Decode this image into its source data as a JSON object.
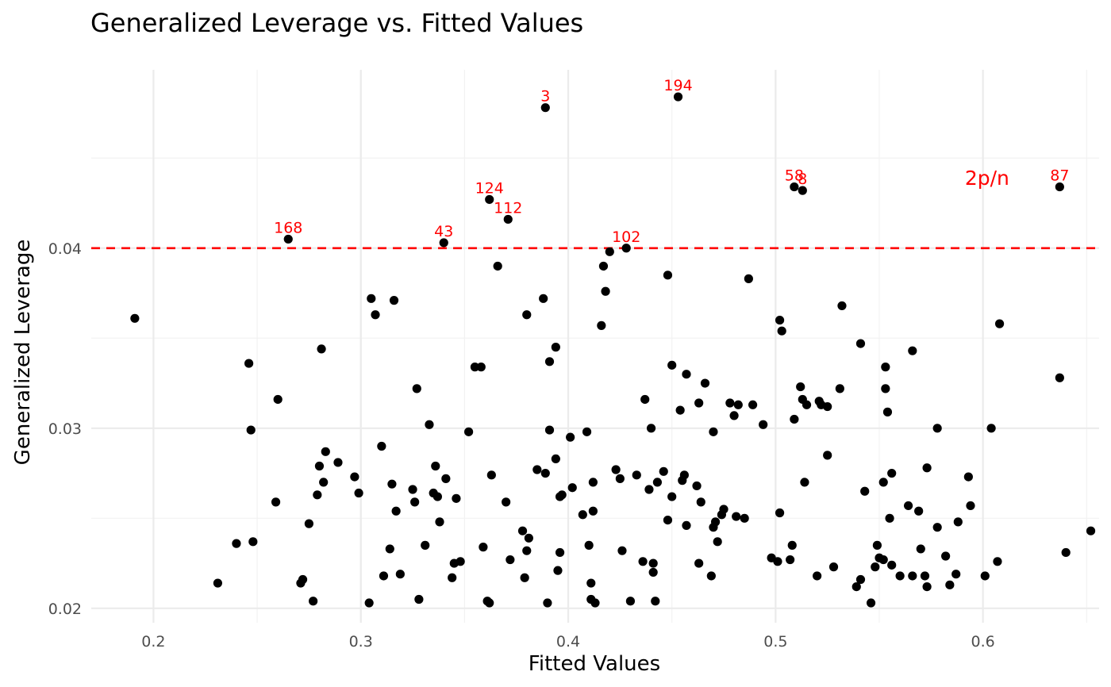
{
  "chart_data": {
    "type": "scatter",
    "title": "Generalized Leverage vs. Fitted Values",
    "xlabel": "Fitted Values",
    "ylabel": "Generalized Leverage",
    "xlim": [
      0.17,
      0.656
    ],
    "ylim": [
      0.0192,
      0.0499
    ],
    "x_ticks": [
      0.2,
      0.3,
      0.4,
      0.5,
      0.6
    ],
    "x_tick_labels": [
      "0.2",
      "0.3",
      "0.4",
      "0.5",
      "0.6"
    ],
    "y_ticks": [
      0.02,
      0.03,
      0.04
    ],
    "y_tick_labels": [
      "0.02",
      "0.03",
      "0.04"
    ],
    "grid": true,
    "point_color": "#000000",
    "label_color": "#ff0000",
    "reference_line": {
      "y": 0.04,
      "label": "2p/n",
      "label_x": 0.602,
      "label_y": 0.0439,
      "color": "#ff0000",
      "style": "dashed"
    },
    "labeled_points": [
      {
        "label": "3",
        "x": 0.389,
        "y": 0.0478
      },
      {
        "label": "194",
        "x": 0.453,
        "y": 0.0484
      },
      {
        "label": "124",
        "x": 0.362,
        "y": 0.0427
      },
      {
        "label": "112",
        "x": 0.371,
        "y": 0.0416
      },
      {
        "label": "58",
        "x": 0.509,
        "y": 0.0434
      },
      {
        "label": "8",
        "x": 0.513,
        "y": 0.0432
      },
      {
        "label": "87",
        "x": 0.637,
        "y": 0.0434
      },
      {
        "label": "168",
        "x": 0.265,
        "y": 0.0405
      },
      {
        "label": "43",
        "x": 0.34,
        "y": 0.0403
      },
      {
        "label": "102",
        "x": 0.428,
        "y": 0.04
      }
    ],
    "points": [
      [
        0.191,
        0.0361
      ],
      [
        0.231,
        0.0214
      ],
      [
        0.24,
        0.0236
      ],
      [
        0.246,
        0.0336
      ],
      [
        0.247,
        0.0299
      ],
      [
        0.248,
        0.0237
      ],
      [
        0.259,
        0.0259
      ],
      [
        0.26,
        0.0316
      ],
      [
        0.271,
        0.0214
      ],
      [
        0.272,
        0.0216
      ],
      [
        0.275,
        0.0247
      ],
      [
        0.277,
        0.0204
      ],
      [
        0.279,
        0.0263
      ],
      [
        0.28,
        0.0279
      ],
      [
        0.281,
        0.0344
      ],
      [
        0.282,
        0.027
      ],
      [
        0.283,
        0.0287
      ],
      [
        0.289,
        0.0281
      ],
      [
        0.297,
        0.0273
      ],
      [
        0.299,
        0.0264
      ],
      [
        0.304,
        0.0203
      ],
      [
        0.305,
        0.0372
      ],
      [
        0.307,
        0.0363
      ],
      [
        0.31,
        0.029
      ],
      [
        0.311,
        0.0218
      ],
      [
        0.314,
        0.0233
      ],
      [
        0.315,
        0.0269
      ],
      [
        0.316,
        0.0371
      ],
      [
        0.317,
        0.0254
      ],
      [
        0.319,
        0.0219
      ],
      [
        0.325,
        0.0266
      ],
      [
        0.326,
        0.0259
      ],
      [
        0.327,
        0.0322
      ],
      [
        0.328,
        0.0205
      ],
      [
        0.331,
        0.0235
      ],
      [
        0.333,
        0.0302
      ],
      [
        0.335,
        0.0264
      ],
      [
        0.336,
        0.0279
      ],
      [
        0.337,
        0.0262
      ],
      [
        0.338,
        0.0248
      ],
      [
        0.341,
        0.0272
      ],
      [
        0.344,
        0.0217
      ],
      [
        0.345,
        0.0225
      ],
      [
        0.346,
        0.0261
      ],
      [
        0.348,
        0.0226
      ],
      [
        0.352,
        0.0298
      ],
      [
        0.355,
        0.0334
      ],
      [
        0.358,
        0.0334
      ],
      [
        0.359,
        0.0234
      ],
      [
        0.361,
        0.0204
      ],
      [
        0.362,
        0.0203
      ],
      [
        0.363,
        0.0274
      ],
      [
        0.366,
        0.039
      ],
      [
        0.37,
        0.0259
      ],
      [
        0.372,
        0.0227
      ],
      [
        0.378,
        0.0243
      ],
      [
        0.379,
        0.0217
      ],
      [
        0.38,
        0.0363
      ],
      [
        0.38,
        0.0232
      ],
      [
        0.381,
        0.0239
      ],
      [
        0.385,
        0.0277
      ],
      [
        0.388,
        0.0372
      ],
      [
        0.389,
        0.0275
      ],
      [
        0.39,
        0.0203
      ],
      [
        0.391,
        0.0337
      ],
      [
        0.391,
        0.0299
      ],
      [
        0.394,
        0.0345
      ],
      [
        0.394,
        0.0283
      ],
      [
        0.395,
        0.0221
      ],
      [
        0.396,
        0.0262
      ],
      [
        0.396,
        0.0231
      ],
      [
        0.397,
        0.0263
      ],
      [
        0.401,
        0.0295
      ],
      [
        0.402,
        0.0267
      ],
      [
        0.407,
        0.0252
      ],
      [
        0.409,
        0.0298
      ],
      [
        0.41,
        0.0235
      ],
      [
        0.411,
        0.0214
      ],
      [
        0.411,
        0.0205
      ],
      [
        0.412,
        0.0254
      ],
      [
        0.412,
        0.027
      ],
      [
        0.413,
        0.0203
      ],
      [
        0.416,
        0.0357
      ],
      [
        0.417,
        0.039
      ],
      [
        0.418,
        0.0376
      ],
      [
        0.42,
        0.0398
      ],
      [
        0.423,
        0.0277
      ],
      [
        0.425,
        0.0272
      ],
      [
        0.426,
        0.0232
      ],
      [
        0.43,
        0.0204
      ],
      [
        0.433,
        0.0274
      ],
      [
        0.436,
        0.0226
      ],
      [
        0.437,
        0.0316
      ],
      [
        0.439,
        0.0266
      ],
      [
        0.44,
        0.03
      ],
      [
        0.441,
        0.0225
      ],
      [
        0.441,
        0.022
      ],
      [
        0.442,
        0.0204
      ],
      [
        0.443,
        0.027
      ],
      [
        0.446,
        0.0276
      ],
      [
        0.448,
        0.0385
      ],
      [
        0.448,
        0.0249
      ],
      [
        0.45,
        0.0262
      ],
      [
        0.45,
        0.0335
      ],
      [
        0.454,
        0.031
      ],
      [
        0.455,
        0.0271
      ],
      [
        0.456,
        0.0274
      ],
      [
        0.457,
        0.0246
      ],
      [
        0.457,
        0.033
      ],
      [
        0.462,
        0.0268
      ],
      [
        0.463,
        0.0314
      ],
      [
        0.463,
        0.0225
      ],
      [
        0.464,
        0.0259
      ],
      [
        0.466,
        0.0325
      ],
      [
        0.469,
        0.0218
      ],
      [
        0.47,
        0.0245
      ],
      [
        0.47,
        0.0298
      ],
      [
        0.471,
        0.0248
      ],
      [
        0.472,
        0.0237
      ],
      [
        0.474,
        0.0252
      ],
      [
        0.475,
        0.0255
      ],
      [
        0.478,
        0.0314
      ],
      [
        0.48,
        0.0307
      ],
      [
        0.481,
        0.0251
      ],
      [
        0.482,
        0.0313
      ],
      [
        0.485,
        0.025
      ],
      [
        0.487,
        0.0383
      ],
      [
        0.489,
        0.0313
      ],
      [
        0.494,
        0.0302
      ],
      [
        0.498,
        0.0228
      ],
      [
        0.501,
        0.0226
      ],
      [
        0.502,
        0.036
      ],
      [
        0.502,
        0.0253
      ],
      [
        0.503,
        0.0354
      ],
      [
        0.507,
        0.0227
      ],
      [
        0.508,
        0.0235
      ],
      [
        0.509,
        0.0305
      ],
      [
        0.512,
        0.0323
      ],
      [
        0.513,
        0.0316
      ],
      [
        0.514,
        0.027
      ],
      [
        0.515,
        0.0313
      ],
      [
        0.52,
        0.0218
      ],
      [
        0.521,
        0.0315
      ],
      [
        0.522,
        0.0313
      ],
      [
        0.525,
        0.0285
      ],
      [
        0.525,
        0.0312
      ],
      [
        0.528,
        0.0223
      ],
      [
        0.531,
        0.0322
      ],
      [
        0.532,
        0.0368
      ],
      [
        0.539,
        0.0212
      ],
      [
        0.541,
        0.0347
      ],
      [
        0.541,
        0.0216
      ],
      [
        0.543,
        0.0265
      ],
      [
        0.546,
        0.0203
      ],
      [
        0.548,
        0.0223
      ],
      [
        0.549,
        0.0235
      ],
      [
        0.55,
        0.0228
      ],
      [
        0.552,
        0.027
      ],
      [
        0.552,
        0.0227
      ],
      [
        0.553,
        0.0322
      ],
      [
        0.553,
        0.0334
      ],
      [
        0.554,
        0.0309
      ],
      [
        0.555,
        0.025
      ],
      [
        0.556,
        0.0224
      ],
      [
        0.556,
        0.0275
      ],
      [
        0.56,
        0.0218
      ],
      [
        0.564,
        0.0257
      ],
      [
        0.566,
        0.0343
      ],
      [
        0.566,
        0.0218
      ],
      [
        0.569,
        0.0254
      ],
      [
        0.57,
        0.0233
      ],
      [
        0.572,
        0.0218
      ],
      [
        0.573,
        0.0212
      ],
      [
        0.573,
        0.0278
      ],
      [
        0.578,
        0.0245
      ],
      [
        0.578,
        0.03
      ],
      [
        0.582,
        0.0229
      ],
      [
        0.584,
        0.0213
      ],
      [
        0.587,
        0.0219
      ],
      [
        0.588,
        0.0248
      ],
      [
        0.593,
        0.0273
      ],
      [
        0.594,
        0.0257
      ],
      [
        0.601,
        0.0218
      ],
      [
        0.604,
        0.03
      ],
      [
        0.607,
        0.0226
      ],
      [
        0.608,
        0.0358
      ],
      [
        0.637,
        0.0328
      ],
      [
        0.64,
        0.0231
      ],
      [
        0.652,
        0.0243
      ]
    ]
  }
}
